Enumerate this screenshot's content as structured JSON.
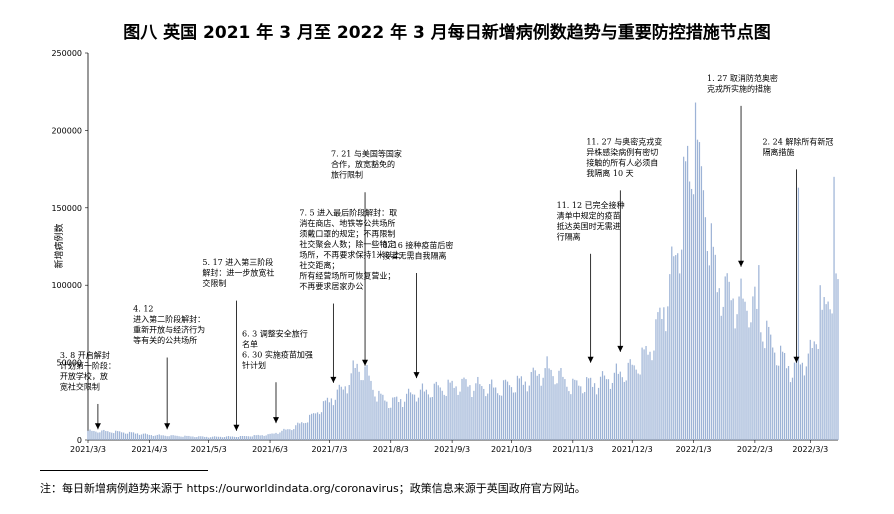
{
  "chart_data": {
    "type": "bar",
    "title": "图八 英国 2021 年 3 月至 2022 年 3 月每日新增病例数趋势与重要防控措施节点图",
    "ylabel": "新增病例数",
    "xlabel": "",
    "ylim": [
      0,
      250000
    ],
    "yticks": [
      "0",
      "50000",
      "100000",
      "150000",
      "200000",
      "250000"
    ],
    "ytick_values": [
      0,
      50000,
      100000,
      150000,
      200000,
      250000
    ],
    "start_date": "2021-03-03",
    "xticks": [
      "2021/3/3",
      "2021/4/3",
      "2021/5/3",
      "2021/6/3",
      "2021/7/3",
      "2021/8/3",
      "2021/9/3",
      "2021/10/3",
      "2021/11/3",
      "2021/12/3",
      "2022/1/3",
      "2022/2/3",
      "2022/3/3"
    ],
    "xtick_dates": [
      "2021-03-03",
      "2021-04-03",
      "2021-05-03",
      "2021-06-03",
      "2021-07-03",
      "2021-08-03",
      "2021-09-03",
      "2021-10-03",
      "2021-11-03",
      "2021-12-03",
      "2022-01-03",
      "2022-02-03",
      "2022-03-03"
    ],
    "grid": false,
    "bar_color": "#9db3d6",
    "series": [
      {
        "name": "",
        "profile": [
          [
            "2021-03-03",
            5800
          ],
          [
            "2021-03-15",
            5500
          ],
          [
            "2021-03-28",
            4300
          ],
          [
            "2021-04-03",
            3300
          ],
          [
            "2021-04-20",
            2500
          ],
          [
            "2021-05-03",
            2000
          ],
          [
            "2021-05-20",
            2300
          ],
          [
            "2021-06-03",
            3500
          ],
          [
            "2021-06-15",
            8000
          ],
          [
            "2021-06-25",
            16000
          ],
          [
            "2021-07-03",
            26000
          ],
          [
            "2021-07-10",
            33000
          ],
          [
            "2021-07-17",
            48000
          ],
          [
            "2021-07-22",
            42000
          ],
          [
            "2021-07-28",
            28000
          ],
          [
            "2021-08-03",
            24000
          ],
          [
            "2021-08-15",
            30000
          ],
          [
            "2021-08-30",
            34000
          ],
          [
            "2021-09-10",
            36000
          ],
          [
            "2021-09-25",
            33000
          ],
          [
            "2021-10-10",
            38000
          ],
          [
            "2021-10-21",
            46000
          ],
          [
            "2021-11-03",
            35000
          ],
          [
            "2021-11-15",
            37000
          ],
          [
            "2021-12-03",
            46000
          ],
          [
            "2021-12-12",
            58000
          ],
          [
            "2021-12-20",
            90000
          ],
          [
            "2021-12-27",
            130000
          ],
          [
            "2022-01-03",
            185000
          ],
          [
            "2022-01-08",
            160000
          ],
          [
            "2022-01-15",
            100000
          ],
          [
            "2022-01-25",
            90000
          ],
          [
            "2022-02-03",
            85000
          ],
          [
            "2022-02-12",
            60000
          ],
          [
            "2022-02-22",
            45000
          ],
          [
            "2022-03-03",
            55000
          ],
          [
            "2022-03-10",
            80000
          ],
          [
            "2022-03-14",
            95000
          ]
        ],
        "peaks": [
          [
            "2021-12-31",
            190000
          ],
          [
            "2022-01-01",
            167000
          ],
          [
            "2022-01-04",
            218000
          ],
          [
            "2022-01-05",
            194000
          ],
          [
            "2021-12-29",
            183000
          ],
          [
            "2022-01-12",
            140000
          ],
          [
            "2022-02-05",
            113000
          ],
          [
            "2022-02-25",
            163000
          ],
          [
            "2022-03-08",
            100000
          ],
          [
            "2022-03-15",
            170000
          ],
          [
            "2022-02-15",
            48000
          ]
        ]
      }
    ],
    "annotations": [
      {
        "date": "2021-03-08",
        "arrow_value": 5000,
        "text_value": 53000,
        "lines": [
          "3. 8  开启解封",
          "计划第一阶段：",
          "开放学校，放",
          "宽社交限制"
        ]
      },
      {
        "date": "2021-04-12",
        "arrow_value": 5000,
        "text_value": 83000,
        "lines": [
          "4. 12",
          "进入第二阶段解封：",
          "重新开放与经济行为",
          "等有关的公共场所"
        ]
      },
      {
        "date": "2021-05-17",
        "arrow_value": 4000,
        "text_value": 113000,
        "lines": [
          "5. 17 进入第三阶段",
          "解封：进一步放宽社",
          "交限制"
        ]
      },
      {
        "date": "2021-06-06",
        "arrow_value": 9000,
        "text_value": 67000,
        "lines": [
          "6. 3  调整安全旅行",
          "名单",
          "6. 30 实施疫苗加强",
          "针计划"
        ]
      },
      {
        "date": "2021-07-05",
        "arrow_value": 35000,
        "text_value": 145000,
        "lines": [
          "7. 5  进入最后阶段解封：取",
          "消在商店、地铁等公共场所",
          "须戴口罩的规定；不再限制",
          "社交聚会人数；除一些特定",
          "场所，不再要求保持1米以上",
          "社交距离；",
          "所有经营场所可恢复营业；",
          "不再要求居家办公"
        ]
      },
      {
        "date": "2021-07-21",
        "arrow_value": 46000,
        "text_value": 183000,
        "lines": [
          "7. 21 与美国等国家",
          "合作，放宽豁免的",
          "旅行限制"
        ]
      },
      {
        "date": "2021-08-16",
        "arrow_value": 38000,
        "text_value": 124000,
        "lines": [
          "8. 16  接种疫苗后密",
          "接者无需自我隔离"
        ]
      },
      {
        "date": "2021-11-12",
        "arrow_value": 48000,
        "text_value": 150000,
        "lines": [
          "11. 12 已完全接种",
          "清单中规定的疫苗",
          "抵达英国时无需进",
          "行隔离"
        ]
      },
      {
        "date": "2021-11-27",
        "arrow_value": 55000,
        "text_value": 191000,
        "lines": [
          "11. 27 与奥密克戎变",
          "异株感染病例有密切",
          "接触的所有人必须自",
          "我隔离 10 天"
        ]
      },
      {
        "date": "2022-01-27",
        "arrow_value": 110000,
        "text_value": 232000,
        "lines": [
          "1. 27 取消防范奥密",
          "克戎所实施的措施"
        ]
      },
      {
        "date": "2022-02-24",
        "arrow_value": 48000,
        "text_value": 191000,
        "lines": [
          "2. 24 解除所有新冠",
          "隔离措施"
        ]
      }
    ]
  },
  "footnote": "注：每日新增病例趋势来源于 https://ourworldindata.org/coronavirus；政策信息来源于英国政府官方网站。"
}
